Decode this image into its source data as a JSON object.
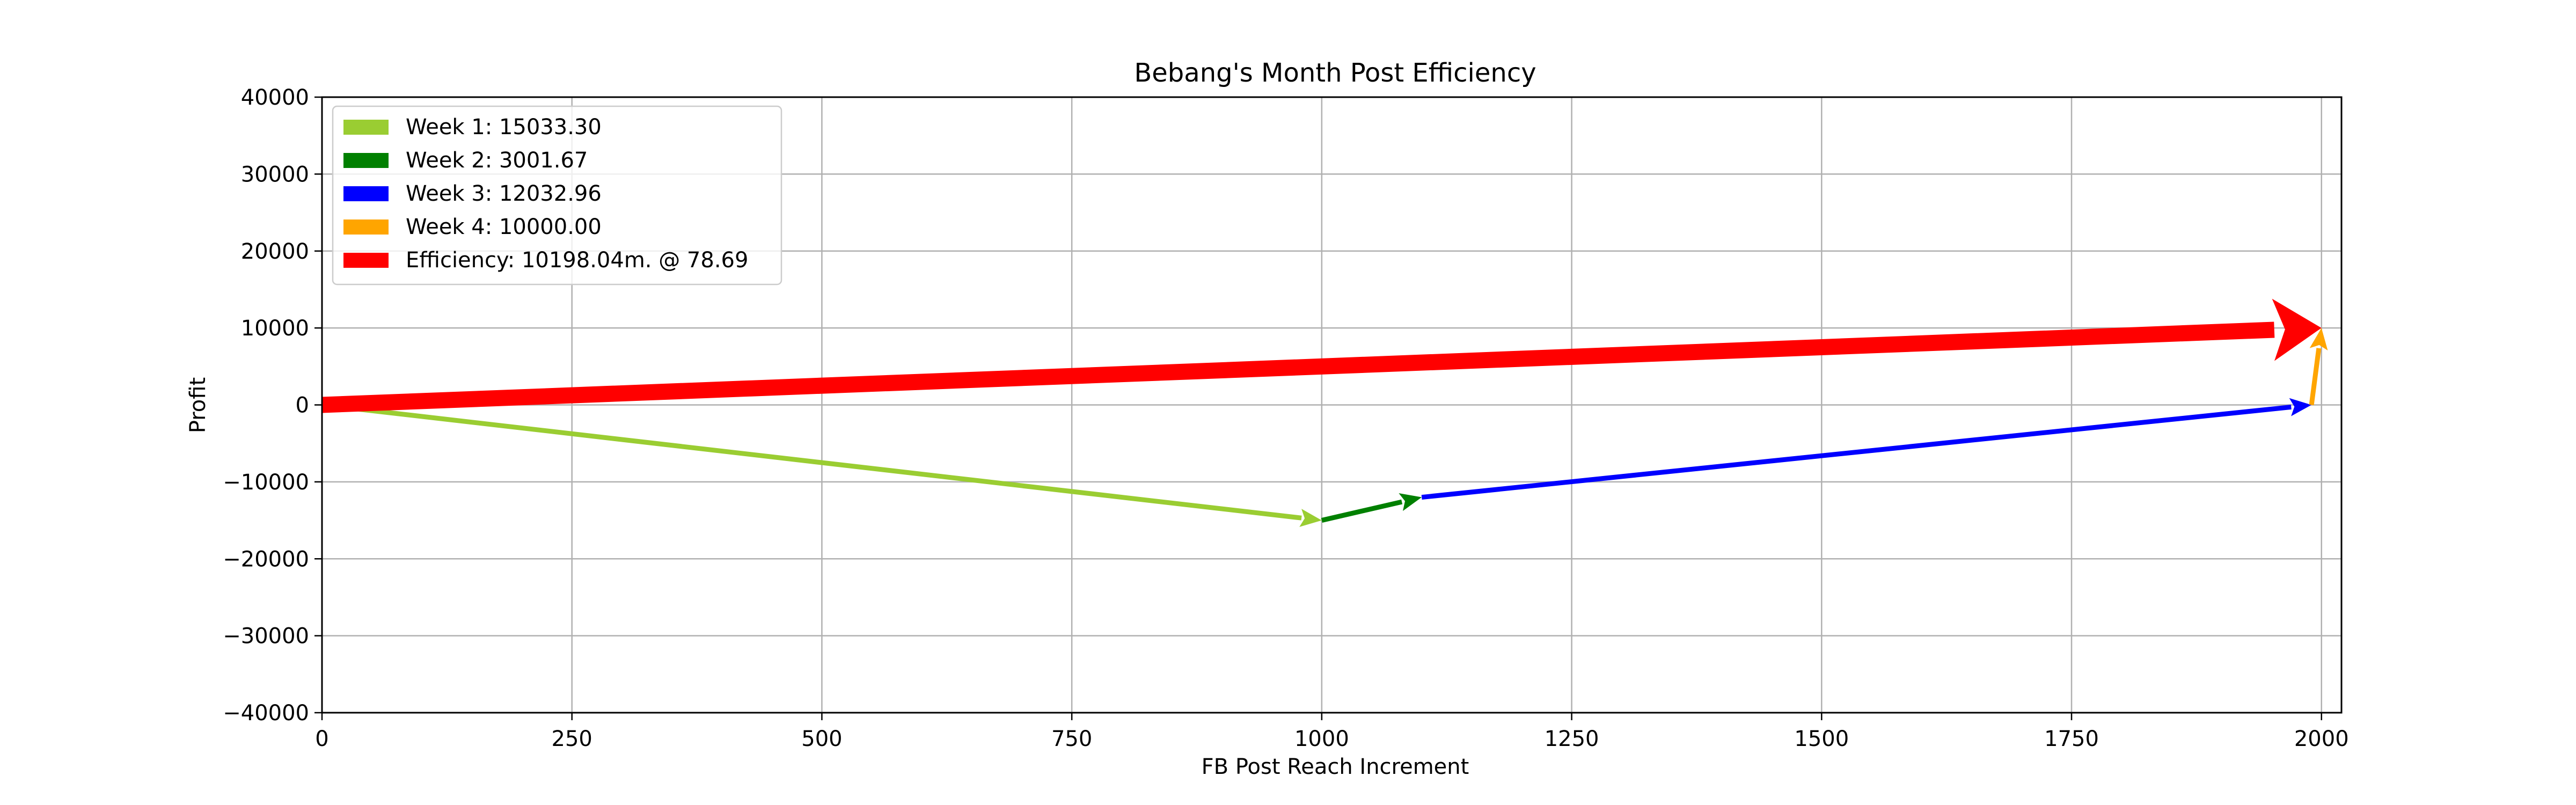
{
  "chart_data": {
    "type": "quiver",
    "title": "Bebang's Month Post Efficiency",
    "xlabel": "FB Post Reach Increment",
    "ylabel": "Profit",
    "xlim": [
      0,
      2020
    ],
    "ylim": [
      -40000,
      40000
    ],
    "x_ticks": [
      0,
      250,
      500,
      750,
      1000,
      1250,
      1500,
      1750,
      2000
    ],
    "y_ticks": [
      40000,
      30000,
      20000,
      10000,
      0,
      -10000,
      -20000,
      -30000,
      -40000
    ],
    "x_tick_labels": [
      "0",
      "250",
      "500",
      "750",
      "1000",
      "1250",
      "1500",
      "1750",
      "2000"
    ],
    "y_tick_labels": [
      "40000",
      "30000",
      "20000",
      "10000",
      "0",
      "−10000",
      "−20000",
      "−30000",
      "−40000"
    ],
    "grid": true,
    "legend_position": "upper-left",
    "series": [
      {
        "name": "Week 1: 15033.30",
        "color": "#9acd32",
        "x0": 0,
        "y0": 0,
        "x1": 1000,
        "y1": -15000,
        "width": "thin"
      },
      {
        "name": "Week 2: 3001.67",
        "color": "#008000",
        "x0": 1000,
        "y0": -15000,
        "x1": 1100,
        "y1": -12000,
        "width": "thin"
      },
      {
        "name": "Week 3: 12032.96",
        "color": "#0000ff",
        "x0": 1100,
        "y0": -12000,
        "x1": 1990,
        "y1": 0,
        "width": "thin"
      },
      {
        "name": "Week 4: 10000.00",
        "color": "#ffa500",
        "x0": 1990,
        "y0": 0,
        "x1": 2000,
        "y1": 10000,
        "width": "thin"
      },
      {
        "name": "Efficiency: 10198.04m. @ 78.69",
        "color": "#ff0000",
        "x0": 0,
        "y0": 0,
        "x1": 2000,
        "y1": 10000,
        "width": "thick"
      }
    ]
  }
}
